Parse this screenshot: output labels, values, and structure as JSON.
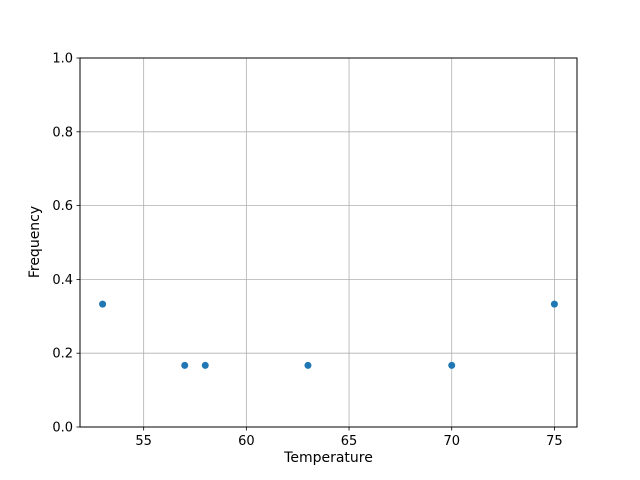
{
  "figure": {
    "background": "#ffffff"
  },
  "chart_data": {
    "type": "scatter",
    "title": "",
    "xlabel": "Temperature",
    "ylabel": "Frequency",
    "points": [
      {
        "x": 53,
        "y": 0.333
      },
      {
        "x": 57,
        "y": 0.167
      },
      {
        "x": 58,
        "y": 0.167
      },
      {
        "x": 63,
        "y": 0.167
      },
      {
        "x": 70,
        "y": 0.167
      },
      {
        "x": 75,
        "y": 0.333
      }
    ],
    "xlim": [
      51.9,
      76.1
    ],
    "ylim": [
      0.0,
      1.0
    ],
    "xticks": {
      "values": [
        55,
        60,
        65,
        70,
        75
      ],
      "labels": [
        "55",
        "60",
        "65",
        "70",
        "75"
      ]
    },
    "yticks": {
      "values": [
        0.0,
        0.2,
        0.4,
        0.6,
        0.8,
        1.0
      ],
      "labels": [
        "0.0",
        "0.2",
        "0.4",
        "0.6",
        "0.8",
        "1.0"
      ]
    },
    "grid": true,
    "legend": null,
    "marker_color": "#1f77b4",
    "marker_radius": 3.5,
    "grid_color": "#b0b0b0",
    "spine_color": "#000000",
    "tick_color": "#000000"
  }
}
